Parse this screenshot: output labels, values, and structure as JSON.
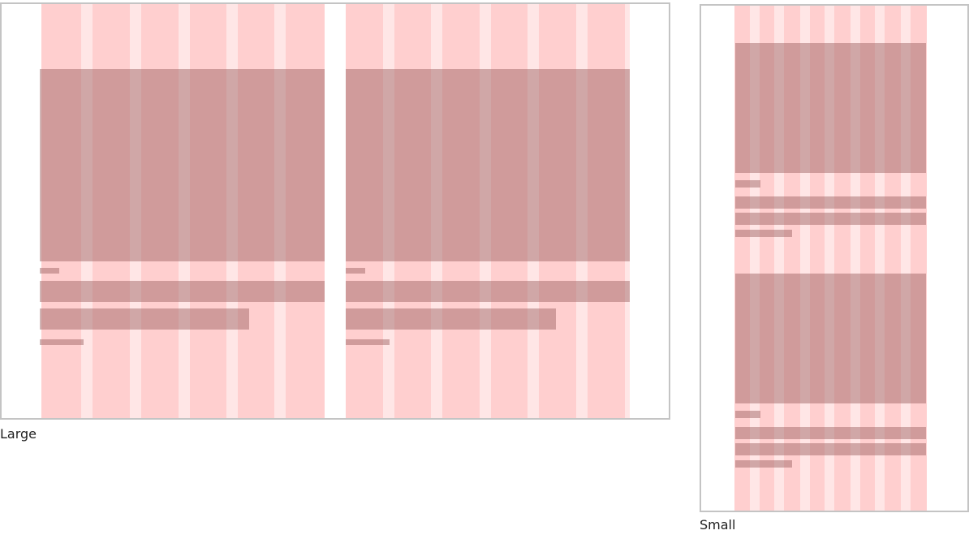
{
  "frames": {
    "large": {
      "caption": "Large",
      "columns": 12,
      "cards_across": 2,
      "card_rows": [
        "image",
        "eyebrow",
        "title-line",
        "title-line-short",
        "meta"
      ]
    },
    "small": {
      "caption": "Small",
      "columns": 12,
      "cards_stacked": 2,
      "card_rows": [
        "image",
        "eyebrow",
        "title-line",
        "title-line",
        "meta"
      ]
    }
  },
  "colors": {
    "frame_border": "#c4c4c4",
    "column_fill": "#ffcfcf",
    "gutter_fill": "#ffe6e6",
    "content_block": "#c8a0a0"
  }
}
